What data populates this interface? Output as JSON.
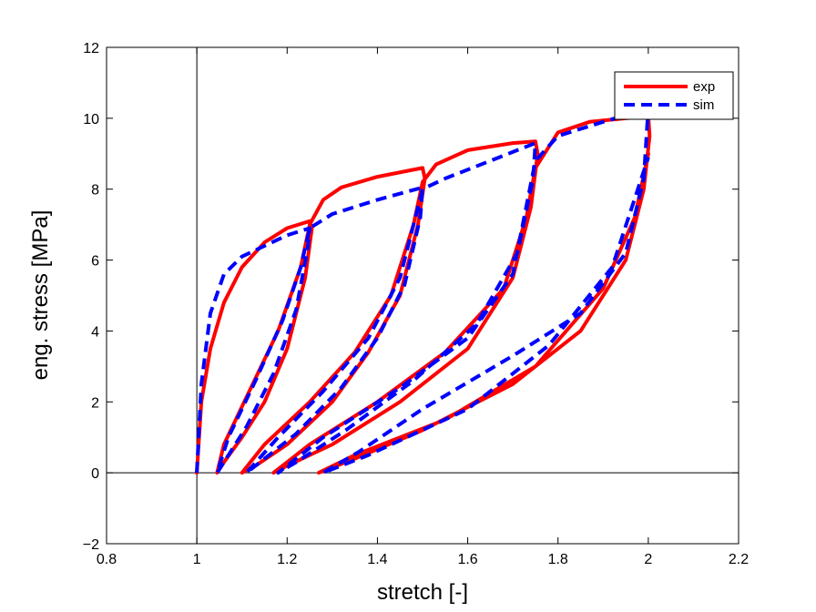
{
  "chart_data": {
    "type": "line",
    "xlabel": "stretch [-]",
    "ylabel": "eng. stress [MPa]",
    "xlim": [
      0.8,
      2.2
    ],
    "ylim": [
      -2,
      12
    ],
    "xticks": [
      0.8,
      1,
      1.2,
      1.4,
      1.6,
      1.8,
      2,
      2.2
    ],
    "yticks": [
      {
        "value": -2,
        "label": "−2"
      },
      0,
      2,
      4,
      6,
      8,
      10,
      12
    ],
    "vlines": [
      1
    ],
    "hlines": [
      0
    ],
    "legend": "upper right",
    "series": [
      {
        "name": "exp",
        "color": "#ff0000",
        "dash": false,
        "x": [
          1.0,
          1.01,
          1.03,
          1.06,
          1.1,
          1.15,
          1.2,
          1.25,
          1.255,
          1.24,
          1.2,
          1.15,
          1.1,
          1.06,
          1.045,
          1.06,
          1.12,
          1.18,
          1.23,
          1.25,
          1.28,
          1.32,
          1.4,
          1.5,
          1.505,
          1.49,
          1.45,
          1.38,
          1.3,
          1.2,
          1.13,
          1.1,
          1.15,
          1.25,
          1.35,
          1.43,
          1.48,
          1.5,
          1.53,
          1.6,
          1.7,
          1.75,
          1.755,
          1.74,
          1.7,
          1.6,
          1.45,
          1.3,
          1.2,
          1.17,
          1.25,
          1.4,
          1.55,
          1.68,
          1.73,
          1.75,
          1.8,
          1.87,
          1.95,
          2.0,
          2.003,
          1.99,
          1.95,
          1.85,
          1.7,
          1.5,
          1.35,
          1.27,
          1.35,
          1.55,
          1.75,
          1.9,
          1.97,
          2.0
        ],
        "values": [
          0,
          2,
          3.5,
          4.8,
          5.8,
          6.5,
          6.9,
          7.1,
          6.9,
          5.5,
          3.5,
          2,
          1,
          0.3,
          0,
          0.8,
          2.4,
          4,
          5.8,
          7,
          7.7,
          8.05,
          8.35,
          8.6,
          8.3,
          7,
          5,
          3.4,
          2,
          0.8,
          0.2,
          0,
          0.8,
          2,
          3.4,
          5,
          7,
          8.2,
          8.7,
          9.1,
          9.3,
          9.35,
          9,
          7.5,
          5.5,
          3.5,
          2,
          0.8,
          0.2,
          0,
          0.8,
          2,
          3.4,
          5.2,
          7.2,
          8.6,
          9.6,
          9.9,
          10,
          10.05,
          9.5,
          8,
          6,
          4,
          2.5,
          1.2,
          0.4,
          0,
          0.5,
          1.5,
          3,
          5.2,
          7.2,
          9
        ]
      },
      {
        "name": "sim",
        "color": "#0000ff",
        "dash": true,
        "x": [
          1.0,
          1.01,
          1.03,
          1.06,
          1.1,
          1.15,
          1.2,
          1.25,
          1.245,
          1.22,
          1.17,
          1.11,
          1.06,
          1.045,
          1.07,
          1.13,
          1.19,
          1.23,
          1.25,
          1.3,
          1.4,
          1.5,
          1.495,
          1.46,
          1.4,
          1.32,
          1.22,
          1.14,
          1.11,
          1.18,
          1.28,
          1.38,
          1.45,
          1.5,
          1.55,
          1.65,
          1.75,
          1.745,
          1.71,
          1.62,
          1.48,
          1.33,
          1.22,
          1.18,
          1.28,
          1.45,
          1.6,
          1.7,
          1.75,
          1.8,
          1.9,
          1.98,
          2.0,
          1.99,
          1.95,
          1.85,
          1.7,
          1.5,
          1.36,
          1.28,
          1.38,
          1.6,
          1.78,
          1.92,
          2.0
        ],
        "values": [
          0,
          2.5,
          4.5,
          5.6,
          6.1,
          6.4,
          6.7,
          6.9,
          6.3,
          4.6,
          2.8,
          1.3,
          0.3,
          0,
          1,
          2.6,
          4.3,
          5.8,
          6.9,
          7.3,
          7.7,
          8.05,
          7.2,
          5.3,
          3.8,
          2.4,
          1.1,
          0.3,
          0,
          1,
          2.3,
          3.8,
          5.5,
          8,
          8.3,
          8.8,
          9.3,
          8.3,
          6.2,
          4.2,
          2.6,
          1.2,
          0.3,
          0,
          1,
          2.4,
          3.8,
          5.6,
          8.8,
          9.5,
          9.9,
          10.2,
          10.3,
          8.3,
          6.2,
          4.5,
          3.3,
          1.8,
          0.6,
          0,
          0.5,
          1.8,
          3.6,
          5.8,
          8.9
        ]
      }
    ]
  }
}
